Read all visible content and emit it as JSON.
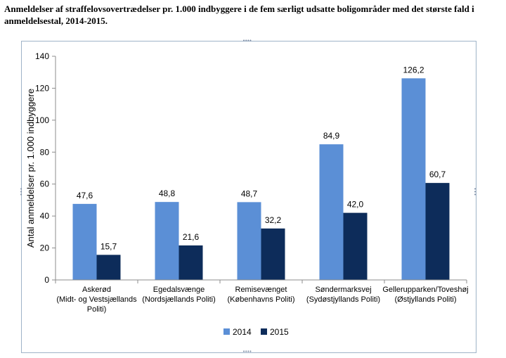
{
  "title": "Anmeldelser af straffelovsovertrædelser pr. 1.000 indbyggere i de fem særligt udsatte boligområder med det største fald i anmeldelsestal, 2014-2015.",
  "chart_data": {
    "type": "bar",
    "ylabel": "Antal anmeldelser pr. 1.000 indbyggere",
    "ylim": [
      0,
      140
    ],
    "yticks": [
      0,
      20,
      40,
      60,
      80,
      100,
      120,
      140
    ],
    "grid": false,
    "legend_position": "bottom",
    "categories": [
      [
        "Askerød",
        "(Midt- og Vestsjællands",
        "Politi)"
      ],
      [
        "Egedalsvænge",
        "(Nordsjællands Politi)"
      ],
      [
        "Remisevænget",
        "(Københavns Politi)"
      ],
      [
        "Søndermarksvej",
        "(Sydøstjyllands Politi)"
      ],
      [
        "Gellerupparken/Toveshøj",
        "(Østjyllands Politi)"
      ]
    ],
    "series": [
      {
        "name": "2014",
        "color": "#5b8fd6",
        "values": [
          47.6,
          48.8,
          48.7,
          84.9,
          126.2
        ],
        "labels": [
          "47,6",
          "48,8",
          "48,7",
          "84,9",
          "126,2"
        ]
      },
      {
        "name": "2015",
        "color": "#0d2c5a",
        "values": [
          15.7,
          21.6,
          32.2,
          42.0,
          60.7
        ],
        "labels": [
          "15,7",
          "21,6",
          "32,2",
          "42,0",
          "60,7"
        ]
      }
    ]
  }
}
